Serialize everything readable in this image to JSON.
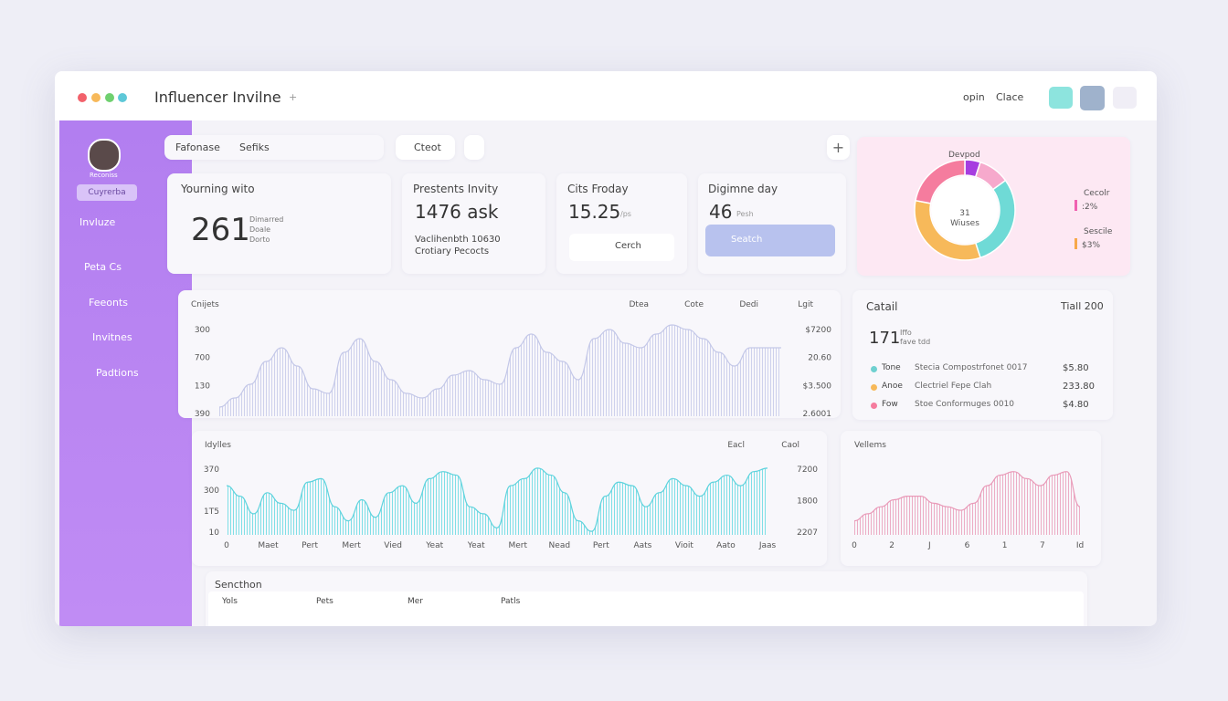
{
  "header": {
    "title": "Influencer Invilne",
    "title_suffix": "+",
    "actions": [
      "opin",
      "Clace"
    ]
  },
  "sidebar": {
    "user": "Reconiss",
    "role": "Cuyrerba",
    "nav": [
      "Invluze",
      "Peta Cs",
      "Feeonts",
      "Invitnes",
      "Padtions"
    ]
  },
  "toolbar": {
    "tabs": [
      "Fafonase",
      "Sefiks"
    ],
    "button": "Cteot"
  },
  "cards": [
    {
      "title": "Yourning wito",
      "value": "261",
      "sub": [
        "Dimarred",
        "Doale",
        "Dorto"
      ]
    },
    {
      "title": "Prestents Invity",
      "value": "1476 ask",
      "sub": [
        "Vaclihenbth 10630",
        "Crotiary Pecocts"
      ]
    },
    {
      "title": "Cits Froday",
      "value": "15.25",
      "unit": "/ps",
      "button": "Cerch"
    },
    {
      "title": "Digimne day",
      "value": "46",
      "unit": "Pesh",
      "button": "Seatch"
    }
  ],
  "donut": {
    "type": "pie",
    "title": "Devpod",
    "center": "31",
    "center_sub": "Wiuses",
    "values": [
      5,
      10,
      30,
      33,
      22
    ],
    "colors": [
      "#a63de0",
      "#f6a9cc",
      "#6fdad6",
      "#f7b95a",
      "#f57c9e"
    ],
    "legend": [
      {
        "name": "Cecolr",
        "value": ":2%",
        "color": "#f060b0"
      },
      {
        "name": "Sescile",
        "value": "$3%",
        "color": "#f7a84a"
      }
    ]
  },
  "charts": [
    {
      "type": "area",
      "title": "Cnijets",
      "filters": [
        "Dtea",
        "Cote",
        "Dedi",
        "Lgit"
      ],
      "y_labels": [
        "300",
        "700",
        "130",
        "390"
      ],
      "y2_labels": [
        "$7200",
        "20.60",
        "$3.500",
        "2.6001"
      ],
      "ylim": [
        0,
        100
      ],
      "color": "#c4c8e8",
      "values": [
        10,
        20,
        35,
        60,
        75,
        55,
        30,
        25,
        70,
        85,
        60,
        40,
        25,
        20,
        30,
        45,
        50,
        40,
        35,
        75,
        90,
        70,
        60,
        40,
        85,
        95,
        80,
        75,
        90,
        100,
        95,
        85,
        70,
        55,
        75,
        75,
        75
      ]
    },
    {
      "type": "area",
      "title": "Idylles",
      "filters": [
        "Eacl",
        "Caol"
      ],
      "y_labels": [
        "370",
        "300",
        "1T5",
        "10"
      ],
      "y2_labels": [
        "7200",
        "1800",
        "2207"
      ],
      "x_labels": [
        "0",
        "Maet",
        "Pert",
        "Mert",
        "Vied",
        "Yeat",
        "Yeat",
        "Mert",
        "Nead",
        "Pert",
        "Aats",
        "Vioit",
        "Aato",
        "Jaas"
      ],
      "ylim": [
        0,
        100
      ],
      "color": "#7fdfe6",
      "values": [
        70,
        55,
        30,
        60,
        45,
        35,
        75,
        80,
        40,
        20,
        50,
        25,
        60,
        70,
        45,
        80,
        90,
        85,
        40,
        30,
        10,
        70,
        80,
        95,
        85,
        60,
        20,
        5,
        55,
        75,
        70,
        40,
        60,
        80,
        70,
        55,
        75,
        85,
        70,
        90,
        95
      ]
    },
    {
      "type": "area",
      "title": "Vellems",
      "filters": [],
      "x_labels": [
        "0",
        "2",
        "J",
        "6",
        "1",
        "7",
        "Id"
      ],
      "ylim": [
        0,
        100
      ],
      "color": "#e99ab8",
      "values": [
        20,
        30,
        40,
        50,
        55,
        55,
        45,
        40,
        35,
        45,
        70,
        85,
        90,
        80,
        70,
        85,
        90,
        40
      ]
    }
  ],
  "detail": {
    "title": "Catail",
    "total": "Tiall 200",
    "value": "171",
    "value_sub": [
      "Iffo",
      "fave tdd"
    ],
    "rows": [
      {
        "name": "Tone",
        "desc": "Stecia Compostrfonet 0017",
        "amount": "$5.80",
        "color": "#6fd0d0"
      },
      {
        "name": "Anoe",
        "desc": "Clectriel Fepe Clah",
        "amount": "233.80",
        "color": "#f7b95a"
      },
      {
        "name": "Fow",
        "desc": "Stoe Conformuges 0010",
        "amount": "$4.80",
        "color": "#f57c9e"
      }
    ]
  },
  "table": {
    "title": "Sencthon",
    "columns": [
      "Yols",
      "Pets",
      "Mer",
      "Patls"
    ]
  }
}
